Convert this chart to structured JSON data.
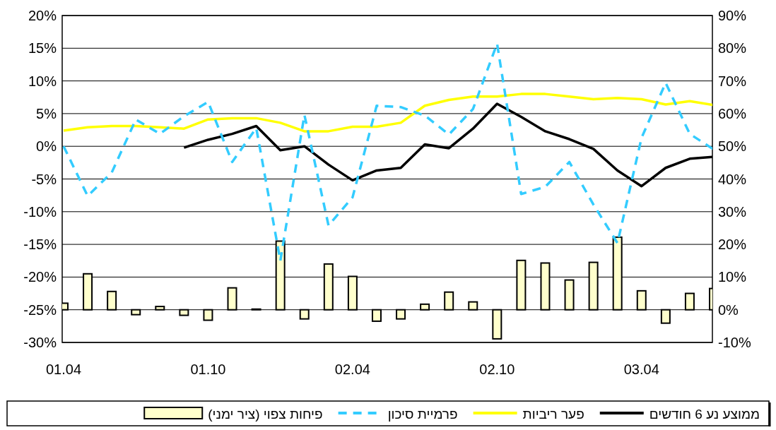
{
  "chart_data": {
    "type": "line",
    "categories": [
      "01.04",
      null,
      null,
      null,
      null,
      null,
      "01.10",
      null,
      null,
      null,
      null,
      null,
      "02.04",
      null,
      null,
      null,
      null,
      null,
      "02.10",
      null,
      null,
      null,
      null,
      null,
      "03.04",
      null,
      null,
      null
    ],
    "series": [
      {
        "name": "ממוצע נע 6 חודשים",
        "color": "#000000",
        "line_style": "solid",
        "values": [
          null,
          null,
          null,
          null,
          null,
          -0.2,
          1.0,
          1.9,
          3.1,
          -0.6,
          0,
          -2.8,
          -5.2,
          -3.7,
          -3.3,
          0.3,
          -0.3,
          2.7,
          6.5,
          4.5,
          2.3,
          1.1,
          -0.4,
          -3.7,
          -6.1,
          -3.3,
          -1.9,
          -1.6
        ]
      },
      {
        "name": "פער ריביות",
        "color": "#ffff00",
        "line_style": "solid",
        "values": [
          2.4,
          2.9,
          3.1,
          3.1,
          2.9,
          2.7,
          4.1,
          4.3,
          4.3,
          3.6,
          2.3,
          2.3,
          3.0,
          3.0,
          3.6,
          6.2,
          7.1,
          7.6,
          7.6,
          8.0,
          8.0,
          7.6,
          7.2,
          7.4,
          7.2,
          6.4,
          6.9,
          6.3
        ]
      },
      {
        "name": "פרמיית סיכון",
        "color": "#33ccff",
        "line_style": "dashed",
        "values": [
          0,
          -7.6,
          -4,
          4.1,
          1.9,
          4.6,
          6.8,
          -2.4,
          2.8,
          -17.5,
          4.8,
          -12.1,
          -7.8,
          6.2,
          6,
          4.7,
          1.8,
          5.7,
          15.7,
          -7.3,
          -6.2,
          -2.4,
          -8.9,
          -14.8,
          1.3,
          9.7,
          1.9,
          -0.5
        ]
      },
      {
        "name": "פיחות צפוי (ציר ימני)",
        "type": "bar",
        "axis": "y2",
        "color": "#ffffcc",
        "values": [
          2,
          11,
          5.6,
          -1.5,
          1,
          -1.7,
          -3.2,
          6.7,
          0.2,
          21,
          -2.8,
          14,
          10.2,
          -3.5,
          -2.8,
          1.7,
          5.4,
          2.4,
          -8.9,
          15.1,
          14.3,
          9.1,
          14.5,
          22.2,
          5.8,
          -4.1,
          5,
          6.5
        ]
      }
    ],
    "ylim": [
      -30,
      20
    ],
    "yticks": [
      {
        "value": -30,
        "label": "-30%"
      },
      {
        "value": -25,
        "label": "-25%"
      },
      {
        "value": -20,
        "label": "-20%"
      },
      {
        "value": -15,
        "label": "-15%"
      },
      {
        "value": -10,
        "label": "-10%"
      },
      {
        "value": -5,
        "label": "-5%"
      },
      {
        "value": 0,
        "label": "0%"
      },
      {
        "value": 5,
        "label": "5%"
      },
      {
        "value": 10,
        "label": "10%"
      },
      {
        "value": 15,
        "label": "15%"
      },
      {
        "value": 20,
        "label": "20%"
      }
    ],
    "y2lim": [
      -10,
      90
    ],
    "y2ticks": [
      {
        "value": -10,
        "label": "-10%"
      },
      {
        "value": 0,
        "label": "0%"
      },
      {
        "value": 10,
        "label": "10%"
      },
      {
        "value": 20,
        "label": "20%"
      },
      {
        "value": 30,
        "label": "30%"
      },
      {
        "value": 40,
        "label": "40%"
      },
      {
        "value": 50,
        "label": "50%"
      },
      {
        "value": 60,
        "label": "60%"
      },
      {
        "value": 70,
        "label": "70%"
      },
      {
        "value": 80,
        "label": "80%"
      },
      {
        "value": 90,
        "label": "90%"
      }
    ],
    "grid": "y",
    "legend": "bottom"
  }
}
